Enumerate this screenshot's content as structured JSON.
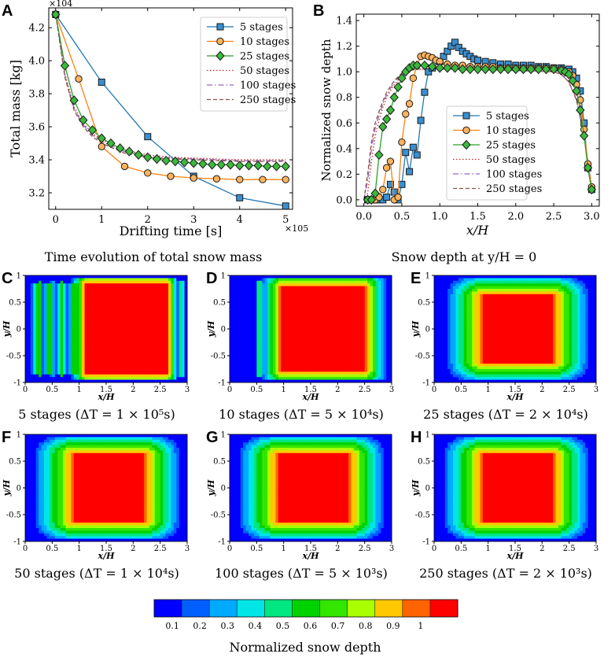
{
  "figure": {
    "panel_letters": [
      "A",
      "B",
      "C",
      "D",
      "E",
      "F",
      "G",
      "H"
    ],
    "caption_A": "Time evolution of total snow mass",
    "caption_B": "Snow depth at y/H = 0",
    "colorbar_label": "Normalized snow depth"
  },
  "colors": {
    "s5": "#1f77b4",
    "s5_fill": "#3a8fd0",
    "s10": "#ff7f0e",
    "s10_fill": "#fdb35e",
    "s25": "#2ca02c",
    "s25_fill": "#3db83d",
    "s50": "#d62728",
    "s100": "#9467bd",
    "s250": "#8c564b"
  },
  "chart_data": [
    {
      "id": "A",
      "type": "line",
      "xlabel": "Drifting time [s]",
      "ylabel": "Total mass [kg]",
      "x_multiplier": "×10^5",
      "y_multiplier": "×10^4",
      "xlim": [
        -0.15,
        5.15
      ],
      "ylim": [
        3.1,
        4.32
      ],
      "xticks": [
        0,
        1,
        2,
        3,
        4,
        5
      ],
      "yticks": [
        3.2,
        3.4,
        3.6,
        3.8,
        4.0,
        4.2
      ],
      "legend": "top-right",
      "series": [
        {
          "name": "5 stages",
          "style": "square",
          "x": [
            0,
            1,
            2,
            3,
            4,
            5
          ],
          "y": [
            4.28,
            3.87,
            3.54,
            3.3,
            3.17,
            3.12
          ]
        },
        {
          "name": "10 stages",
          "style": "circle",
          "x": [
            0,
            0.5,
            1,
            1.5,
            2,
            2.5,
            3,
            3.5,
            4,
            4.5,
            5
          ],
          "y": [
            4.28,
            3.89,
            3.48,
            3.36,
            3.32,
            3.3,
            3.29,
            3.285,
            3.28,
            3.28,
            3.28
          ]
        },
        {
          "name": "25 stages",
          "style": "diamond",
          "x": [
            0,
            0.2,
            0.4,
            0.6,
            0.8,
            1.0,
            1.2,
            1.4,
            1.6,
            1.8,
            2.0,
            2.2,
            2.4,
            2.6,
            2.8,
            3.0,
            3.2,
            3.4,
            3.6,
            3.8,
            4.0,
            4.2,
            4.4,
            4.6,
            4.8,
            5.0
          ],
          "y": [
            4.28,
            3.97,
            3.76,
            3.64,
            3.58,
            3.53,
            3.5,
            3.47,
            3.45,
            3.43,
            3.415,
            3.405,
            3.395,
            3.39,
            3.385,
            3.38,
            3.375,
            3.37,
            3.37,
            3.37,
            3.365,
            3.365,
            3.365,
            3.36,
            3.36,
            3.36
          ]
        },
        {
          "name": "50 stages",
          "style": "dotted",
          "x": [
            0,
            0.2,
            0.4,
            0.6,
            0.8,
            1.0,
            1.5,
            2.0,
            2.5,
            3.0,
            3.5,
            4.0,
            4.5,
            5.0
          ],
          "y": [
            4.28,
            3.92,
            3.72,
            3.62,
            3.56,
            3.52,
            3.46,
            3.43,
            3.415,
            3.41,
            3.405,
            3.4,
            3.4,
            3.4
          ]
        },
        {
          "name": "100 stages",
          "style": "dashdot",
          "x": [
            0,
            0.2,
            0.4,
            0.6,
            0.8,
            1.0,
            1.5,
            2.0,
            2.5,
            3.0,
            3.5,
            4.0,
            4.5,
            5.0
          ],
          "y": [
            4.28,
            3.91,
            3.71,
            3.61,
            3.55,
            3.51,
            3.45,
            3.42,
            3.41,
            3.405,
            3.4,
            3.395,
            3.395,
            3.395
          ]
        },
        {
          "name": "250 stages",
          "style": "dashed",
          "x": [
            0,
            0.2,
            0.4,
            0.6,
            0.8,
            1.0,
            1.5,
            2.0,
            2.5,
            3.0,
            3.5,
            4.0,
            4.5,
            5.0
          ],
          "y": [
            4.28,
            3.9,
            3.7,
            3.6,
            3.54,
            3.5,
            3.44,
            3.415,
            3.405,
            3.4,
            3.395,
            3.39,
            3.39,
            3.39
          ]
        }
      ]
    },
    {
      "id": "B",
      "type": "line",
      "xlabel": "x/H",
      "ylabel": "Normalized snow depth",
      "xlim": [
        -0.1,
        3.1
      ],
      "ylim": [
        -0.05,
        1.45
      ],
      "xticks": [
        0.0,
        0.5,
        1.0,
        1.5,
        2.0,
        2.5,
        3.0
      ],
      "yticks": [
        0.0,
        0.2,
        0.4,
        0.6,
        0.8,
        1.0,
        1.2,
        1.4
      ],
      "legend": "center",
      "series": [
        {
          "name": "5 stages",
          "style": "square",
          "x": [
            0.05,
            0.1,
            0.15,
            0.2,
            0.25,
            0.3,
            0.35,
            0.4,
            0.45,
            0.5,
            0.55,
            0.6,
            0.65,
            0.7,
            0.75,
            0.8,
            0.85,
            0.9,
            1.0,
            1.05,
            1.1,
            1.15,
            1.2,
            1.25,
            1.3,
            1.35,
            1.4,
            1.45,
            1.5,
            1.6,
            1.7,
            1.8,
            1.9,
            2.0,
            2.1,
            2.2,
            2.3,
            2.4,
            2.5,
            2.6,
            2.7,
            2.75,
            2.8,
            2.85,
            2.9,
            2.95,
            3.0
          ],
          "y": [
            0.0,
            0.0,
            0.0,
            0.0,
            0.0,
            0.02,
            0.12,
            0.06,
            0.0,
            0.12,
            0.37,
            0.22,
            0.41,
            0.35,
            0.62,
            0.84,
            1.0,
            1.03,
            1.08,
            1.12,
            1.16,
            1.2,
            1.23,
            1.19,
            1.16,
            1.14,
            1.12,
            1.1,
            1.09,
            1.08,
            1.07,
            1.06,
            1.06,
            1.05,
            1.05,
            1.05,
            1.04,
            1.04,
            1.03,
            1.03,
            1.02,
            1.0,
            0.95,
            0.85,
            0.6,
            0.25,
            0.08
          ]
        },
        {
          "name": "10 stages",
          "style": "circle",
          "x": [
            0.05,
            0.1,
            0.15,
            0.2,
            0.25,
            0.3,
            0.35,
            0.4,
            0.45,
            0.5,
            0.55,
            0.6,
            0.65,
            0.7,
            0.75,
            0.8,
            0.85,
            0.9,
            0.95,
            1.0,
            1.1,
            1.2,
            1.3,
            1.4,
            1.5,
            1.6,
            1.7,
            1.8,
            1.9,
            2.0,
            2.1,
            2.2,
            2.3,
            2.4,
            2.5,
            2.6,
            2.7,
            2.75,
            2.8,
            2.85,
            2.9,
            2.95,
            3.0
          ],
          "y": [
            0.0,
            0.0,
            0.0,
            0.02,
            0.08,
            0.25,
            0.3,
            0.0,
            0.02,
            0.45,
            0.67,
            0.75,
            0.95,
            1.05,
            1.12,
            1.13,
            1.12,
            1.11,
            1.09,
            1.08,
            1.06,
            1.05,
            1.05,
            1.04,
            1.04,
            1.04,
            1.04,
            1.03,
            1.03,
            1.03,
            1.03,
            1.03,
            1.03,
            1.03,
            1.03,
            1.02,
            1.0,
            0.97,
            0.9,
            0.78,
            0.55,
            0.28,
            0.1
          ]
        },
        {
          "name": "25 stages",
          "style": "diamond",
          "x": [
            0.05,
            0.1,
            0.15,
            0.2,
            0.25,
            0.3,
            0.35,
            0.4,
            0.45,
            0.5,
            0.55,
            0.6,
            0.65,
            0.7,
            0.8,
            0.9,
            1.0,
            1.1,
            1.2,
            1.3,
            1.4,
            1.5,
            1.6,
            1.7,
            1.8,
            1.9,
            2.0,
            2.1,
            2.2,
            2.3,
            2.4,
            2.5,
            2.6,
            2.65,
            2.7,
            2.75,
            2.8,
            2.85,
            2.9,
            2.95,
            3.0
          ],
          "y": [
            0.0,
            0.0,
            0.05,
            0.35,
            0.57,
            0.63,
            0.7,
            0.8,
            0.88,
            0.95,
            1.0,
            1.03,
            1.05,
            1.05,
            1.05,
            1.04,
            1.03,
            1.03,
            1.03,
            1.02,
            1.02,
            1.02,
            1.02,
            1.02,
            1.02,
            1.02,
            1.02,
            1.02,
            1.02,
            1.02,
            1.02,
            1.02,
            1.01,
            1.0,
            0.98,
            0.93,
            0.85,
            0.7,
            0.5,
            0.25,
            0.08
          ]
        },
        {
          "name": "50 stages",
          "style": "dotted",
          "x": [
            0.0,
            0.05,
            0.1,
            0.15,
            0.2,
            0.25,
            0.3,
            0.4,
            0.5,
            0.6,
            0.7,
            0.8,
            1.0,
            1.5,
            2.0,
            2.5,
            2.6,
            2.7,
            2.8,
            2.9,
            3.0
          ],
          "y": [
            0.0,
            0.05,
            0.3,
            0.5,
            0.62,
            0.72,
            0.8,
            0.9,
            0.97,
            1.01,
            1.02,
            1.02,
            1.02,
            1.02,
            1.01,
            1.0,
            0.98,
            0.92,
            0.78,
            0.5,
            0.1
          ]
        },
        {
          "name": "100 stages",
          "style": "dashdot",
          "x": [
            0.0,
            0.05,
            0.1,
            0.15,
            0.2,
            0.25,
            0.3,
            0.4,
            0.5,
            0.6,
            0.7,
            0.8,
            1.0,
            1.5,
            2.0,
            2.5,
            2.6,
            2.7,
            2.8,
            2.9,
            3.0
          ],
          "y": [
            0.0,
            0.15,
            0.4,
            0.56,
            0.66,
            0.75,
            0.82,
            0.92,
            0.98,
            1.01,
            1.02,
            1.02,
            1.02,
            1.02,
            1.01,
            1.0,
            0.98,
            0.92,
            0.78,
            0.5,
            0.1
          ]
        },
        {
          "name": "250 stages",
          "style": "dashed",
          "x": [
            0.0,
            0.05,
            0.1,
            0.15,
            0.2,
            0.25,
            0.3,
            0.4,
            0.5,
            0.6,
            0.7,
            0.8,
            1.0,
            1.5,
            2.0,
            2.5,
            2.6,
            2.7,
            2.8,
            2.9,
            3.0
          ],
          "y": [
            0.0,
            0.2,
            0.45,
            0.6,
            0.69,
            0.77,
            0.84,
            0.93,
            0.99,
            1.01,
            1.02,
            1.02,
            1.02,
            1.02,
            1.01,
            1.0,
            0.98,
            0.92,
            0.78,
            0.5,
            0.1
          ]
        }
      ]
    },
    {
      "id": "contours",
      "type": "heatmap",
      "xlabel": "x/H",
      "ylabel": "y/H",
      "xlim": [
        0,
        3
      ],
      "ylim": [
        -1,
        1
      ],
      "xticks": [
        0,
        0.5,
        1,
        1.5,
        2,
        2.5,
        3
      ],
      "yticks": [
        -1,
        -0.5,
        0,
        0.5,
        1
      ],
      "panels": [
        {
          "letter": "C",
          "stages": 5,
          "caption": "5 stages (ΔT = 1 × 10⁵s)",
          "core_x": [
            1.1,
            2.65
          ],
          "core_y": 0.82,
          "stripes": [
            0.28,
            0.5,
            0.68,
            2.9
          ],
          "falloff": [
            0.2,
            0.15,
            0.3,
            0.12
          ]
        },
        {
          "letter": "D",
          "stages": 10,
          "caption": "10 stages (ΔT = 5 × 10⁴s)",
          "core_x": [
            0.95,
            2.5
          ],
          "core_y": 0.78,
          "stripes": [
            0.55
          ],
          "falloff": [
            0.3,
            0.35,
            0.3,
            0.15
          ]
        },
        {
          "letter": "E",
          "stages": 25,
          "caption": "25 stages (ΔT = 2 × 10⁴s)",
          "core_x": [
            0.9,
            2.2
          ],
          "core_y": 0.62,
          "stripes": [],
          "falloff": [
            0.55,
            0.55,
            0.35,
            0.3
          ]
        },
        {
          "letter": "F",
          "stages": 50,
          "caption": "50 stages (ΔT = 1 × 10⁴s)",
          "core_x": [
            0.9,
            2.2
          ],
          "core_y": 0.62,
          "stripes": [],
          "falloff": [
            0.6,
            0.55,
            0.35,
            0.3
          ]
        },
        {
          "letter": "G",
          "stages": 100,
          "caption": "100 stages (ΔT = 5 × 10³s)",
          "core_x": [
            0.9,
            2.2
          ],
          "core_y": 0.62,
          "stripes": [],
          "falloff": [
            0.6,
            0.55,
            0.35,
            0.3
          ]
        },
        {
          "letter": "H",
          "stages": 250,
          "caption": "250 stages (ΔT = 2 × 10³s)",
          "core_x": [
            0.9,
            2.2
          ],
          "core_y": 0.62,
          "stripes": [],
          "falloff": [
            0.6,
            0.55,
            0.35,
            0.3
          ]
        }
      ]
    },
    {
      "id": "colorbar",
      "type": "colorbar",
      "tick_labels": [
        "0.1",
        "0.2",
        "0.3",
        "0.4",
        "0.5",
        "0.6",
        "0.7",
        "0.8",
        "0.9",
        "1"
      ],
      "colors": [
        "#0000ff",
        "#0060ff",
        "#00aaff",
        "#00e6e6",
        "#00e680",
        "#00d200",
        "#33e600",
        "#aaff00",
        "#ffc800",
        "#ff6400",
        "#ff0000"
      ],
      "label": "Normalized snow depth"
    }
  ]
}
